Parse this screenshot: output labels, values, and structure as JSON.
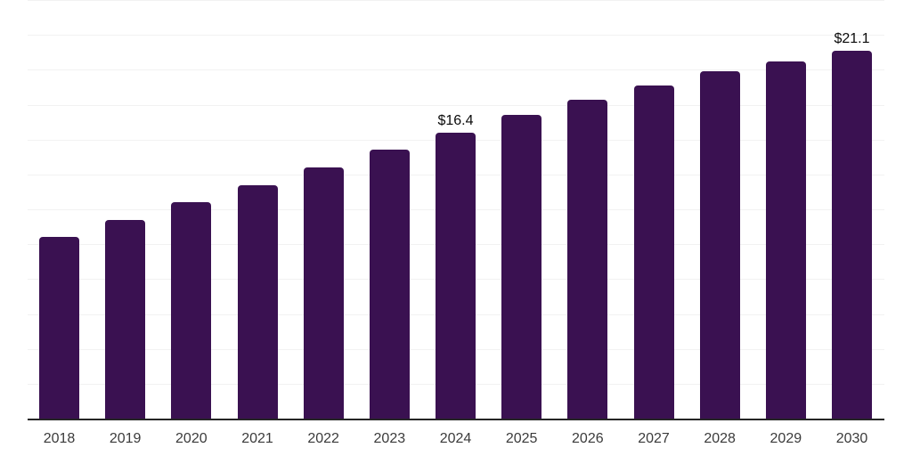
{
  "chart_data": {
    "type": "bar",
    "title": "",
    "xlabel": "",
    "ylabel": "",
    "categories": [
      "2018",
      "2019",
      "2020",
      "2021",
      "2022",
      "2023",
      "2024",
      "2025",
      "2026",
      "2027",
      "2028",
      "2029",
      "2030"
    ],
    "values": [
      10.4,
      11.4,
      12.4,
      13.4,
      14.4,
      15.4,
      16.4,
      17.4,
      18.3,
      19.1,
      19.9,
      20.5,
      21.1
    ],
    "data_labels": {
      "2024": "$16.4",
      "2030": "$21.1"
    },
    "ylim": [
      0,
      24
    ],
    "grid": true,
    "grid_step": 2,
    "legend": false,
    "colors": {
      "bar": "#3A1151",
      "gridline": "#F2F2F2",
      "axis": "#262626",
      "tick_label": "#3B3B3B",
      "data_label": "#0A0A0A",
      "background": "#FFFFFF"
    }
  }
}
